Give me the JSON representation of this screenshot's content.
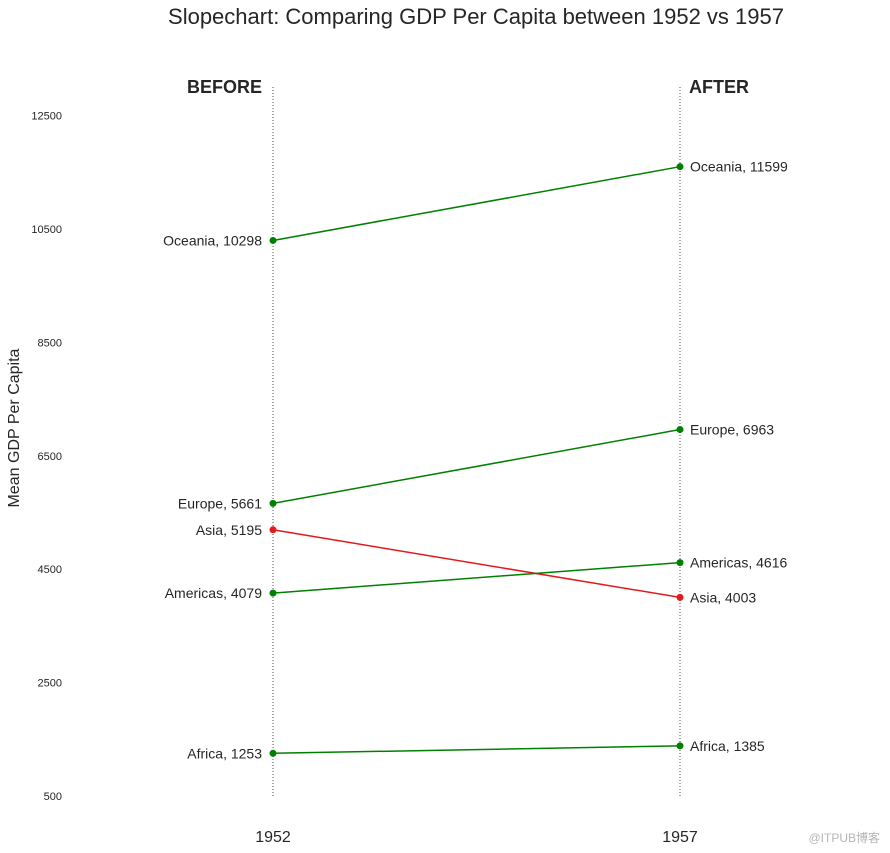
{
  "chart_data": {
    "type": "line",
    "title": "Slopechart: Comparing GDP Per Capita between 1952 vs 1957",
    "xlabel": "",
    "ylabel": "Mean GDP Per Capita",
    "x": [
      "1952",
      "1957"
    ],
    "ylim": [
      500,
      13000
    ],
    "yticks": [
      500,
      2500,
      4500,
      6500,
      8500,
      10500,
      12500
    ],
    "left_header": "BEFORE",
    "right_header": "AFTER",
    "grid": false,
    "series": [
      {
        "name": "Oceania",
        "values": [
          10298,
          11599
        ],
        "color": "#008000"
      },
      {
        "name": "Europe",
        "values": [
          5661,
          6963
        ],
        "color": "#008000"
      },
      {
        "name": "Asia",
        "values": [
          5195,
          4003
        ],
        "color": "#e31a1c"
      },
      {
        "name": "Americas",
        "values": [
          4079,
          4616
        ],
        "color": "#008000"
      },
      {
        "name": "Africa",
        "values": [
          1253,
          1385
        ],
        "color": "#008000"
      }
    ]
  },
  "watermark": "@ITPUB博客"
}
